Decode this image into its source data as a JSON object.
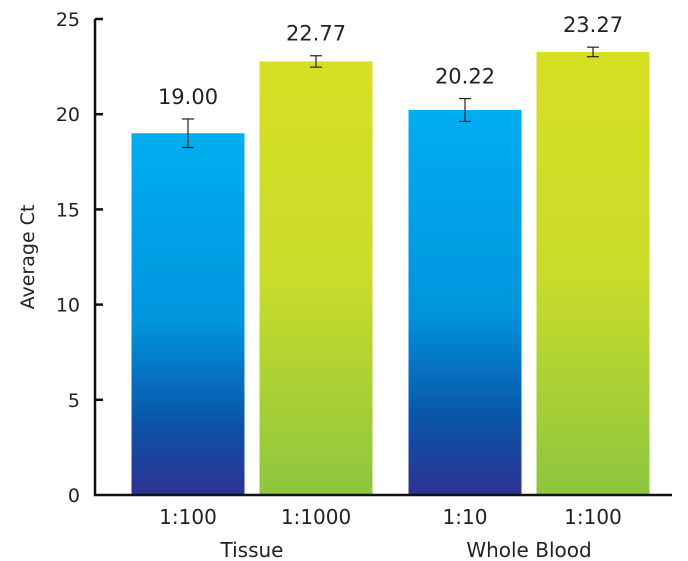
{
  "chart_data": {
    "type": "bar",
    "title": "",
    "xlabel": "",
    "ylabel": "Average Ct",
    "ylim": [
      0,
      25
    ],
    "yticks": [
      0,
      5,
      10,
      15,
      20,
      25
    ],
    "grid": false,
    "groups": [
      {
        "label": "Tissue",
        "categories": [
          "1:100",
          "1:1000"
        ]
      },
      {
        "label": "Whole Blood",
        "categories": [
          "1:10",
          "1:100"
        ]
      }
    ],
    "bars": [
      {
        "group": "Tissue",
        "category": "1:100",
        "value": 19.0,
        "label": "19.00",
        "error": 0.75,
        "gradient": "blue"
      },
      {
        "group": "Tissue",
        "category": "1:1000",
        "value": 22.77,
        "label": "22.77",
        "error": 0.3,
        "gradient": "green"
      },
      {
        "group": "Whole Blood",
        "category": "1:10",
        "value": 20.22,
        "label": "20.22",
        "error": 0.6,
        "gradient": "blue"
      },
      {
        "group": "Whole Blood",
        "category": "1:100",
        "value": 23.27,
        "label": "23.27",
        "error": 0.25,
        "gradient": "green"
      }
    ],
    "colors": {
      "blue_top": "#00aeef",
      "blue_mid": "#0095dd",
      "blue_low": "#0a55a8",
      "blue_bottom": "#2e3192",
      "green_top": "#d7df23",
      "green_mid": "#c9dc2a",
      "green_bottom": "#8dc63f"
    }
  }
}
